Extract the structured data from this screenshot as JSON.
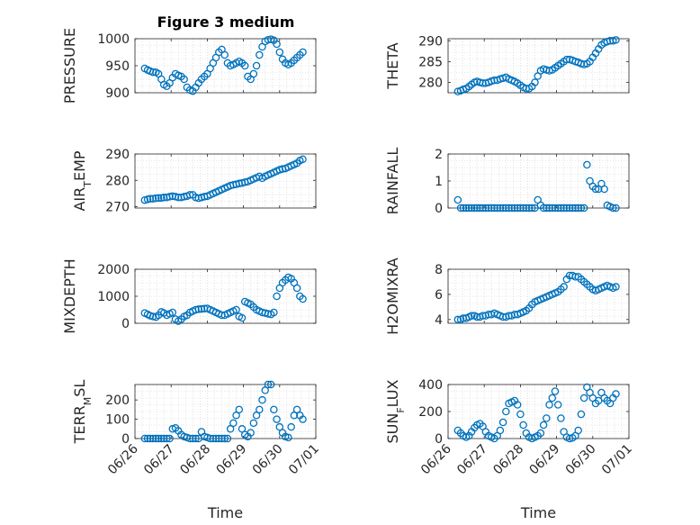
{
  "title": "Figure 3 medium",
  "chart_data": [
    {
      "type": "scatter",
      "ylabel": "PRESSURE",
      "ylim": [
        900,
        1000
      ],
      "yticks": [
        "900",
        "950",
        "1000"
      ],
      "xlim": [
        0,
        5
      ],
      "xticks": [],
      "xlabel": "",
      "x": [
        0.27,
        0.35,
        0.42,
        0.5,
        0.58,
        0.65,
        0.73,
        0.8,
        0.88,
        0.96,
        1.04,
        1.12,
        1.2,
        1.28,
        1.36,
        1.44,
        1.52,
        1.6,
        1.68,
        1.76,
        1.84,
        1.92,
        2.0,
        2.08,
        2.16,
        2.24,
        2.32,
        2.4,
        2.48,
        2.56,
        2.64,
        2.72,
        2.8,
        2.88,
        2.96,
        3.04,
        3.12,
        3.2,
        3.28,
        3.36,
        3.44,
        3.52,
        3.6,
        3.68,
        3.76,
        3.84,
        3.92,
        4.0,
        4.08,
        4.16,
        4.24,
        4.32,
        4.4,
        4.48,
        4.56,
        4.64
      ],
      "y": [
        945,
        942,
        940,
        938,
        938,
        935,
        925,
        915,
        912,
        918,
        928,
        935,
        932,
        930,
        925,
        910,
        905,
        903,
        910,
        918,
        925,
        930,
        935,
        945,
        955,
        965,
        975,
        980,
        970,
        955,
        950,
        952,
        955,
        958,
        955,
        950,
        930,
        925,
        935,
        950,
        970,
        985,
        995,
        998,
        999,
        997,
        990,
        975,
        962,
        955,
        952,
        955,
        960,
        965,
        970,
        975
      ]
    },
    {
      "type": "scatter",
      "ylabel": "THETA",
      "ylim": [
        277.5,
        290.5
      ],
      "yticks": [
        "280",
        "285",
        "290"
      ],
      "xlim": [
        0,
        5
      ],
      "xticks": [],
      "xlabel": "",
      "x": [
        0.27,
        0.35,
        0.42,
        0.5,
        0.58,
        0.65,
        0.73,
        0.8,
        0.88,
        0.96,
        1.04,
        1.12,
        1.2,
        1.28,
        1.36,
        1.44,
        1.52,
        1.6,
        1.68,
        1.76,
        1.84,
        1.92,
        2.0,
        2.08,
        2.16,
        2.24,
        2.32,
        2.4,
        2.48,
        2.56,
        2.64,
        2.72,
        2.8,
        2.88,
        2.96,
        3.04,
        3.12,
        3.2,
        3.28,
        3.36,
        3.44,
        3.52,
        3.6,
        3.68,
        3.76,
        3.84,
        3.92,
        4.0,
        4.08,
        4.16,
        4.24,
        4.32,
        4.4,
        4.48,
        4.56,
        4.64
      ],
      "y": [
        277.8,
        278.0,
        278.3,
        278.5,
        279.0,
        279.5,
        280.0,
        280.2,
        280.0,
        279.8,
        279.8,
        280.0,
        280.3,
        280.5,
        280.5,
        280.8,
        281.0,
        281.2,
        280.8,
        280.5,
        280.2,
        279.8,
        279.3,
        278.8,
        278.5,
        278.5,
        279.0,
        280.0,
        281.5,
        282.8,
        283.2,
        283.0,
        282.8,
        283.0,
        283.5,
        284.0,
        284.5,
        285.0,
        285.5,
        285.5,
        285.3,
        285.0,
        284.8,
        284.5,
        284.3,
        284.5,
        285.0,
        286.0,
        287.0,
        288.0,
        289.0,
        289.5,
        289.8,
        290.0,
        290.0,
        290.2
      ]
    },
    {
      "type": "scatter",
      "ylabel": "AIR_TEMP",
      "ylim": [
        269.5,
        290
      ],
      "yticks": [
        "270",
        "280",
        "290"
      ],
      "xlim": [
        0,
        5
      ],
      "xticks": [],
      "xlabel": "",
      "x": [
        0.27,
        0.35,
        0.42,
        0.5,
        0.58,
        0.65,
        0.73,
        0.8,
        0.88,
        0.96,
        1.04,
        1.12,
        1.2,
        1.28,
        1.36,
        1.44,
        1.52,
        1.6,
        1.68,
        1.76,
        1.84,
        1.92,
        2.0,
        2.08,
        2.16,
        2.24,
        2.32,
        2.4,
        2.48,
        2.56,
        2.64,
        2.72,
        2.8,
        2.88,
        2.96,
        3.04,
        3.12,
        3.2,
        3.28,
        3.36,
        3.44,
        3.52,
        3.6,
        3.68,
        3.76,
        3.84,
        3.92,
        4.0,
        4.08,
        4.16,
        4.24,
        4.32,
        4.4,
        4.48,
        4.56,
        4.64
      ],
      "y": [
        272.5,
        272.8,
        273.0,
        273.0,
        273.2,
        273.3,
        273.3,
        273.5,
        273.5,
        273.8,
        274.0,
        273.8,
        273.5,
        273.5,
        273.8,
        274.0,
        274.5,
        274.5,
        273.5,
        273.2,
        273.5,
        273.8,
        274.0,
        274.5,
        275.0,
        275.5,
        276.0,
        276.5,
        277.0,
        277.5,
        278.0,
        278.3,
        278.5,
        278.8,
        279.0,
        279.3,
        279.5,
        280.0,
        280.5,
        281.0,
        281.5,
        280.8,
        281.5,
        282.0,
        282.5,
        283.0,
        283.5,
        284.0,
        284.3,
        284.5,
        285.0,
        285.5,
        286.0,
        286.5,
        287.5,
        288.0
      ]
    },
    {
      "type": "scatter",
      "ylabel": "RAINFALL",
      "ylim": [
        0,
        2
      ],
      "yticks": [
        "0",
        "1",
        "2"
      ],
      "xlim": [
        0,
        5
      ],
      "xticks": [],
      "xlabel": "",
      "x": [
        0.27,
        0.35,
        0.42,
        0.5,
        0.58,
        0.65,
        0.73,
        0.8,
        0.88,
        0.96,
        1.04,
        1.12,
        1.2,
        1.28,
        1.36,
        1.44,
        1.52,
        1.6,
        1.68,
        1.76,
        1.84,
        1.92,
        2.0,
        2.08,
        2.16,
        2.24,
        2.32,
        2.4,
        2.48,
        2.56,
        2.64,
        2.72,
        2.8,
        2.88,
        2.96,
        3.04,
        3.12,
        3.2,
        3.28,
        3.36,
        3.44,
        3.52,
        3.6,
        3.68,
        3.76,
        3.84,
        3.92,
        4.0,
        4.08,
        4.16,
        4.24,
        4.32,
        4.4,
        4.48,
        4.56,
        4.64
      ],
      "y": [
        0.3,
        0,
        0,
        0,
        0,
        0,
        0,
        0,
        0,
        0,
        0,
        0,
        0,
        0,
        0,
        0,
        0,
        0,
        0,
        0,
        0,
        0,
        0,
        0,
        0,
        0,
        0,
        0,
        0.3,
        0.1,
        0,
        0,
        0,
        0,
        0,
        0,
        0,
        0,
        0,
        0,
        0,
        0,
        0,
        0,
        0,
        1.6,
        1.0,
        0.8,
        0.7,
        0.7,
        0.9,
        0.7,
        0.1,
        0.05,
        0,
        0
      ]
    },
    {
      "type": "scatter",
      "ylabel": "MIXDEPTH",
      "ylim": [
        0,
        2000
      ],
      "yticks": [
        "0",
        "1000",
        "2000"
      ],
      "xlim": [
        0,
        5
      ],
      "xticks": [],
      "xlabel": "",
      "x": [
        0.27,
        0.35,
        0.42,
        0.5,
        0.58,
        0.65,
        0.73,
        0.8,
        0.88,
        0.96,
        1.04,
        1.12,
        1.2,
        1.28,
        1.36,
        1.44,
        1.52,
        1.6,
        1.68,
        1.76,
        1.84,
        1.92,
        2.0,
        2.08,
        2.16,
        2.24,
        2.32,
        2.4,
        2.48,
        2.56,
        2.64,
        2.72,
        2.8,
        2.88,
        2.96,
        3.04,
        3.12,
        3.2,
        3.28,
        3.36,
        3.44,
        3.52,
        3.6,
        3.68,
        3.76,
        3.84,
        3.92,
        4.0,
        4.08,
        4.16,
        4.24,
        4.32,
        4.4,
        4.48,
        4.56,
        4.64
      ],
      "y": [
        380,
        330,
        280,
        250,
        230,
        300,
        420,
        380,
        300,
        350,
        400,
        150,
        80,
        150,
        250,
        300,
        400,
        450,
        500,
        520,
        530,
        540,
        550,
        500,
        450,
        400,
        350,
        300,
        300,
        350,
        400,
        450,
        500,
        250,
        200,
        800,
        750,
        700,
        600,
        500,
        450,
        400,
        380,
        350,
        330,
        400,
        1000,
        1300,
        1500,
        1600,
        1700,
        1650,
        1500,
        1300,
        1000,
        900
      ]
    },
    {
      "type": "scatter",
      "ylabel": "H2OMIXRA",
      "ylim": [
        3.7,
        8
      ],
      "yticks": [
        "4",
        "6",
        "8"
      ],
      "xlim": [
        0,
        5
      ],
      "xticks": [],
      "xlabel": "",
      "x": [
        0.27,
        0.35,
        0.42,
        0.5,
        0.58,
        0.65,
        0.73,
        0.8,
        0.88,
        0.96,
        1.04,
        1.12,
        1.2,
        1.28,
        1.36,
        1.44,
        1.52,
        1.6,
        1.68,
        1.76,
        1.84,
        1.92,
        2.0,
        2.08,
        2.16,
        2.24,
        2.32,
        2.4,
        2.48,
        2.56,
        2.64,
        2.72,
        2.8,
        2.88,
        2.96,
        3.04,
        3.12,
        3.2,
        3.28,
        3.36,
        3.44,
        3.52,
        3.6,
        3.68,
        3.76,
        3.84,
        3.92,
        4.0,
        4.08,
        4.16,
        4.24,
        4.32,
        4.4,
        4.48,
        4.56,
        4.64
      ],
      "y": [
        4.0,
        4.0,
        4.1,
        4.1,
        4.2,
        4.3,
        4.3,
        4.2,
        4.2,
        4.3,
        4.3,
        4.4,
        4.4,
        4.5,
        4.4,
        4.3,
        4.2,
        4.2,
        4.3,
        4.3,
        4.4,
        4.4,
        4.5,
        4.6,
        4.7,
        4.9,
        5.2,
        5.4,
        5.5,
        5.6,
        5.7,
        5.8,
        5.9,
        6.0,
        6.1,
        6.2,
        6.4,
        6.6,
        7.2,
        7.5,
        7.5,
        7.4,
        7.4,
        7.2,
        7.0,
        6.8,
        6.6,
        6.4,
        6.3,
        6.4,
        6.5,
        6.6,
        6.7,
        6.6,
        6.5,
        6.6
      ]
    },
    {
      "type": "scatter",
      "ylabel": "TERR_MSL",
      "ylim": [
        0,
        280
      ],
      "yticks": [
        "0",
        "100",
        "200"
      ],
      "xlim": [
        0,
        5
      ],
      "xticks": [
        "06/26",
        "06/27",
        "06/28",
        "06/29",
        "06/30",
        "07/01"
      ],
      "xlabel": "Time",
      "x": [
        0.27,
        0.35,
        0.42,
        0.5,
        0.58,
        0.65,
        0.73,
        0.8,
        0.88,
        0.96,
        1.04,
        1.12,
        1.2,
        1.28,
        1.36,
        1.44,
        1.52,
        1.6,
        1.68,
        1.76,
        1.84,
        1.92,
        2.0,
        2.08,
        2.16,
        2.24,
        2.32,
        2.4,
        2.48,
        2.56,
        2.64,
        2.72,
        2.8,
        2.88,
        2.96,
        3.04,
        3.12,
        3.2,
        3.28,
        3.36,
        3.44,
        3.52,
        3.6,
        3.68,
        3.76,
        3.84,
        3.92,
        4.0,
        4.08,
        4.16,
        4.24,
        4.32,
        4.4,
        4.48,
        4.56,
        4.64
      ],
      "y": [
        0,
        0,
        0,
        0,
        0,
        0,
        0,
        0,
        0,
        0,
        50,
        55,
        40,
        20,
        10,
        5,
        0,
        0,
        0,
        0,
        35,
        10,
        5,
        0,
        0,
        0,
        0,
        0,
        0,
        0,
        50,
        80,
        120,
        150,
        50,
        20,
        10,
        30,
        80,
        120,
        150,
        200,
        250,
        280,
        280,
        150,
        100,
        60,
        30,
        10,
        5,
        60,
        120,
        150,
        120,
        100
      ]
    },
    {
      "type": "scatter",
      "ylabel": "SUN_FLUX",
      "ylim": [
        0,
        400
      ],
      "yticks": [
        "0",
        "200",
        "400"
      ],
      "xlim": [
        0,
        5
      ],
      "xticks": [
        "06/26",
        "06/27",
        "06/28",
        "06/29",
        "06/30",
        "07/01"
      ],
      "xlabel": "Time",
      "x": [
        0.27,
        0.35,
        0.42,
        0.5,
        0.58,
        0.65,
        0.73,
        0.8,
        0.88,
        0.96,
        1.04,
        1.12,
        1.2,
        1.28,
        1.36,
        1.44,
        1.52,
        1.6,
        1.68,
        1.76,
        1.84,
        1.92,
        2.0,
        2.08,
        2.16,
        2.24,
        2.32,
        2.4,
        2.48,
        2.56,
        2.64,
        2.72,
        2.8,
        2.88,
        2.96,
        3.04,
        3.12,
        3.2,
        3.28,
        3.36,
        3.44,
        3.52,
        3.6,
        3.68,
        3.76,
        3.84,
        3.92,
        4.0,
        4.08,
        4.16,
        4.24,
        4.32,
        4.4,
        4.48,
        4.56,
        4.64
      ],
      "y": [
        60,
        40,
        20,
        10,
        20,
        50,
        80,
        100,
        110,
        90,
        50,
        20,
        10,
        0,
        20,
        60,
        120,
        200,
        260,
        270,
        280,
        250,
        180,
        100,
        40,
        10,
        0,
        10,
        20,
        40,
        100,
        150,
        250,
        300,
        350,
        250,
        150,
        50,
        10,
        0,
        5,
        20,
        60,
        180,
        300,
        380,
        340,
        300,
        260,
        280,
        340,
        300,
        280,
        260,
        300,
        330
      ]
    }
  ]
}
